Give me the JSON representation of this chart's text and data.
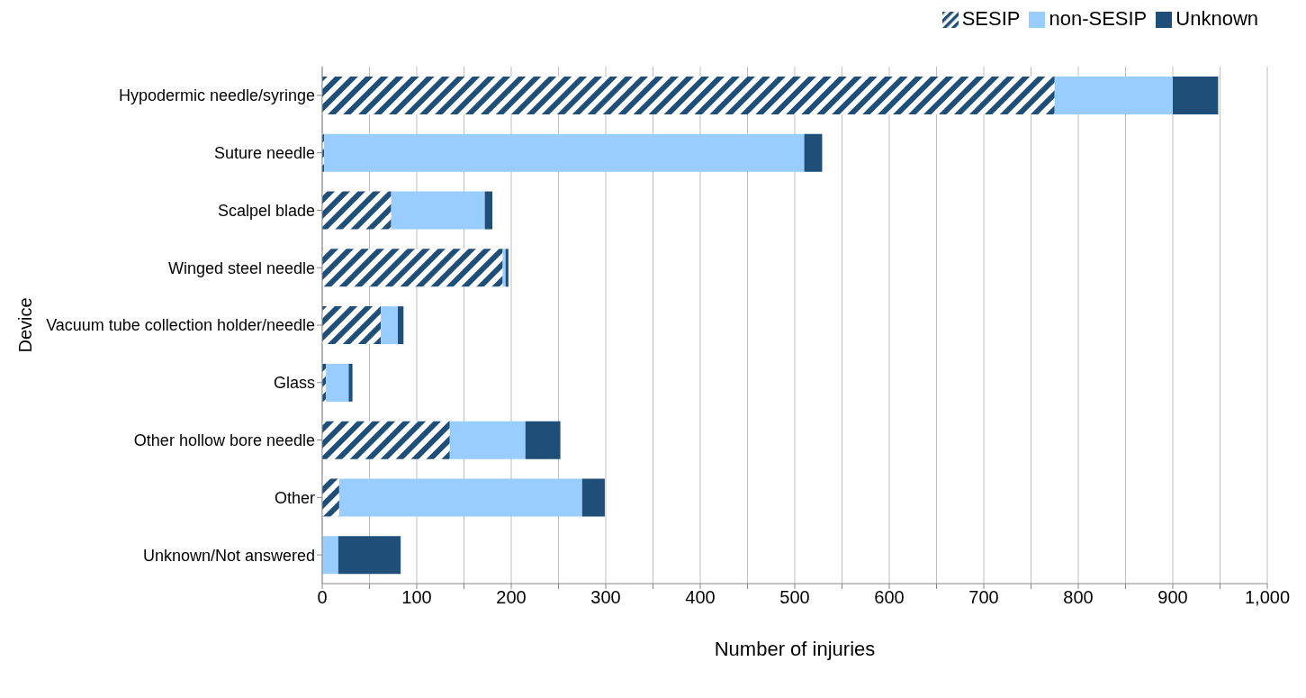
{
  "chart_data": {
    "type": "bar",
    "orientation": "horizontal",
    "stacked": true,
    "xlabel": "Number of injuries",
    "ylabel": "Device",
    "categories": [
      "Hypodermic needle/syringe",
      "Suture needle",
      "Scalpel blade",
      "Winged steel needle",
      "Vacuum tube collection holder/needle",
      "Glass",
      "Other hollow bore needle",
      "Other",
      "Unknown/Not answered"
    ],
    "series": [
      {
        "name": "SESIP",
        "color": "#1f4e79",
        "values": [
          775,
          2,
          73,
          191,
          62,
          4,
          135,
          18,
          0
        ]
      },
      {
        "name": "non-SESIP",
        "color": "#99ccff",
        "values": [
          125,
          508,
          99,
          3,
          18,
          24,
          80,
          257,
          17
        ]
      },
      {
        "name": "Unknown",
        "color": "#1f4e79",
        "values": [
          48,
          19,
          8,
          3,
          6,
          4,
          37,
          24,
          66
        ]
      }
    ],
    "xlim": [
      0,
      1000
    ],
    "xticks": [
      0,
      {
        "value": 50,
        "label": null
      },
      100,
      {
        "value": 150,
        "label": null
      },
      200,
      {
        "value": 250,
        "label": null
      },
      300,
      {
        "value": 350,
        "label": null
      },
      400,
      {
        "value": 450,
        "label": null
      },
      500,
      {
        "value": 550,
        "label": null
      },
      600,
      {
        "value": 650,
        "label": null
      },
      700,
      {
        "value": 750,
        "label": null
      },
      800,
      {
        "value": 850,
        "label": null
      },
      900,
      {
        "value": 950,
        "label": null
      },
      {
        "value": 1000,
        "label": "1,000"
      }
    ],
    "grid": "x",
    "legend": "top right"
  }
}
